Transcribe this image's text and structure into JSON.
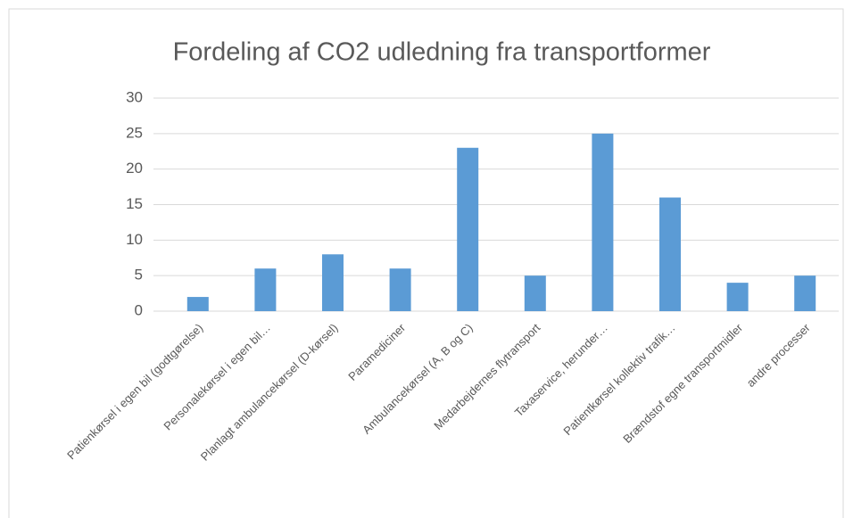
{
  "chart_data": {
    "type": "bar",
    "title": "Fordeling af CO2 udledning fra transportformer",
    "categories": [
      "Patienkørsel i egen bil (godtgørelse)",
      "Personalekørsel i egen bil…",
      "Planlagt ambulancekørsel (D-kørsel)",
      "Paramediciner",
      "Ambulancekørsel (A, B og C)",
      "Medarbejdernes flytransport",
      "Taxaservice, herunder…",
      "Patientkørsel kollektiv trafik…",
      "Brændstof egne transportmidler",
      "andre processer"
    ],
    "values": [
      2,
      6,
      8,
      6,
      23,
      5,
      25,
      16,
      4,
      5
    ],
    "color": "#5b9bd5",
    "ylim": [
      0,
      30
    ],
    "yticks": [
      0,
      5,
      10,
      15,
      20,
      25,
      30
    ],
    "grid": true
  }
}
